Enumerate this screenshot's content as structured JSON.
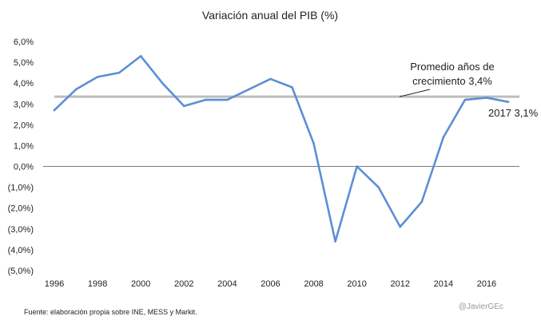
{
  "chart_data": {
    "type": "line",
    "title": "Variación anual del PIB (%)",
    "xlabel": "",
    "ylabel": "",
    "ylim": [
      -5,
      6
    ],
    "y_ticks": [
      6,
      5,
      4,
      3,
      2,
      1,
      0,
      -1,
      -2,
      -3,
      -4,
      -5
    ],
    "y_tick_labels": [
      "6,0%",
      "5,0%",
      "4,0%",
      "3,0%",
      "2,0%",
      "1,0%",
      "0,0%",
      "(1,0%)",
      "(2,0%)",
      "(3,0%)",
      "(4,0%)",
      "(5,0%)"
    ],
    "x_tick_labels": [
      "1996",
      "1998",
      "2000",
      "2002",
      "2004",
      "2006",
      "2008",
      "2010",
      "2012",
      "2014",
      "2016"
    ],
    "series": [
      {
        "name": "Variación anual del PIB",
        "color": "#5b8fd6",
        "x": [
          1996,
          1997,
          1998,
          1999,
          2000,
          2001,
          2002,
          2003,
          2004,
          2005,
          2006,
          2007,
          2008,
          2009,
          2010,
          2011,
          2012,
          2013,
          2014,
          2015,
          2016,
          2017
        ],
        "values": [
          2.7,
          3.7,
          4.3,
          4.5,
          5.3,
          4.0,
          2.9,
          3.2,
          3.2,
          3.7,
          4.2,
          3.8,
          1.1,
          -3.6,
          0.0,
          -1.0,
          -2.9,
          -1.7,
          1.4,
          3.2,
          3.3,
          3.1
        ]
      }
    ],
    "reference_line": {
      "value": 3.35,
      "color": "#bdbdbd"
    },
    "annotations": {
      "average_line1": "Promedio años de",
      "average_line2": "crecimiento 3,4%",
      "last_point": "2017 3,1%"
    },
    "source": "Fuente: elaboración propia sobre INE, MESS y Markit.",
    "credit": "@JavierGEc"
  }
}
